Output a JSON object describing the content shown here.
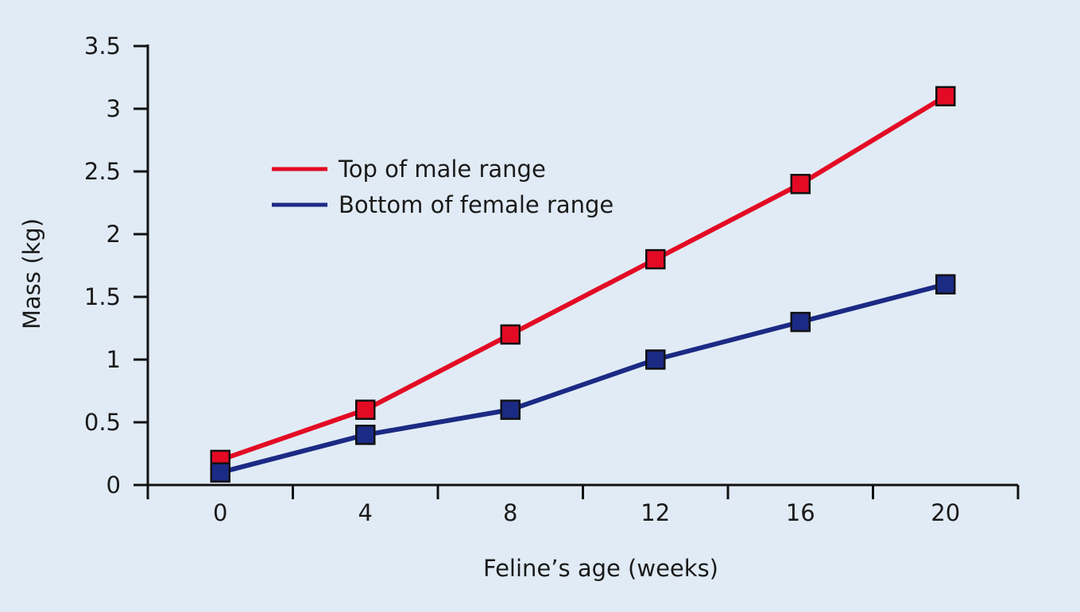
{
  "chart_data": {
    "type": "line",
    "title": "",
    "xlabel": "Feline’s age (weeks)",
    "ylabel": "Mass (kg)",
    "x": [
      0,
      4,
      8,
      12,
      16,
      20
    ],
    "x_ticks": [
      "0",
      "4",
      "8",
      "12",
      "16",
      "20"
    ],
    "y_ticks": [
      "0",
      "0.5",
      "1",
      "1.5",
      "2",
      "2.5",
      "3",
      "3.5"
    ],
    "xlim": [
      -2,
      22
    ],
    "ylim": [
      0,
      3.5
    ],
    "grid": false,
    "legend_position": "upper-left",
    "series": [
      {
        "name": "Top of male range",
        "color": "#e30a24",
        "values": [
          0.2,
          0.6,
          1.2,
          1.8,
          2.4,
          3.1
        ]
      },
      {
        "name": "Bottom of female range",
        "color": "#1b2a84",
        "values": [
          0.1,
          0.4,
          0.6,
          1.0,
          1.3,
          1.6
        ]
      }
    ]
  }
}
